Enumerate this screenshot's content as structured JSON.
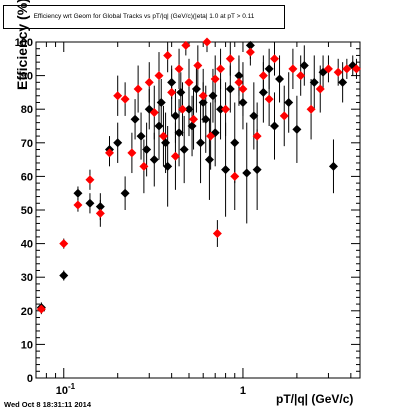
{
  "title": "Efficiency wrt Geom for Global Tracks vs pT/|q| (GeV/c)(|eta| 1.0 at pT > 0.11",
  "timestamp": "Wed Oct  8 18:31:11 2014",
  "chart_data": {
    "type": "scatter",
    "title": "Efficiency wrt Geom for Global Tracks vs pT/|q| (GeV/c)(|eta| 1.0 at pT > 0.11",
    "xlabel": "pT/|q| (GeV/c)",
    "ylabel": "Efficiency (%)",
    "x_scale": "log",
    "xlim": [
      0.07,
      4.5
    ],
    "ylim": [
      0,
      100
    ],
    "x_tick_labels": [
      "10^-1",
      "1"
    ],
    "y_tick_labels": [
      "0",
      "10",
      "20",
      "30",
      "40",
      "50",
      "60",
      "70",
      "80",
      "90",
      "100"
    ],
    "grid": false,
    "series": [
      {
        "color": "#000000",
        "marker": "diamond",
        "points": [
          {
            "x": 0.075,
            "y": 21,
            "err": 1.5
          },
          {
            "x": 0.1,
            "y": 30.5,
            "err": 1.5
          },
          {
            "x": 0.12,
            "y": 55,
            "err": 2
          },
          {
            "x": 0.14,
            "y": 52,
            "err": 3
          },
          {
            "x": 0.16,
            "y": 51,
            "err": 4
          },
          {
            "x": 0.18,
            "y": 68,
            "err": 4
          },
          {
            "x": 0.2,
            "y": 70,
            "err": 6
          },
          {
            "x": 0.22,
            "y": 55,
            "err": 5
          },
          {
            "x": 0.25,
            "y": 77,
            "err": 6
          },
          {
            "x": 0.27,
            "y": 72,
            "err": 7
          },
          {
            "x": 0.29,
            "y": 68,
            "err": 8
          },
          {
            "x": 0.3,
            "y": 80,
            "err": 6
          },
          {
            "x": 0.32,
            "y": 65,
            "err": 8
          },
          {
            "x": 0.34,
            "y": 75,
            "err": 10
          },
          {
            "x": 0.35,
            "y": 82,
            "err": 7
          },
          {
            "x": 0.37,
            "y": 70,
            "err": 9
          },
          {
            "x": 0.38,
            "y": 63,
            "err": 12
          },
          {
            "x": 0.4,
            "y": 88,
            "err": 5
          },
          {
            "x": 0.42,
            "y": 78,
            "err": 8
          },
          {
            "x": 0.44,
            "y": 73,
            "err": 10
          },
          {
            "x": 0.45,
            "y": 85,
            "err": 6
          },
          {
            "x": 0.47,
            "y": 68,
            "err": 10
          },
          {
            "x": 0.5,
            "y": 80,
            "err": 8
          },
          {
            "x": 0.52,
            "y": 75,
            "err": 9
          },
          {
            "x": 0.55,
            "y": 86,
            "err": 7
          },
          {
            "x": 0.58,
            "y": 70,
            "err": 12
          },
          {
            "x": 0.6,
            "y": 82,
            "err": 6
          },
          {
            "x": 0.62,
            "y": 77,
            "err": 10
          },
          {
            "x": 0.65,
            "y": 65,
            "err": 12
          },
          {
            "x": 0.68,
            "y": 84,
            "err": 8
          },
          {
            "x": 0.7,
            "y": 73,
            "err": 10
          },
          {
            "x": 0.75,
            "y": 80,
            "err": 9
          },
          {
            "x": 0.8,
            "y": 62,
            "err": 14
          },
          {
            "x": 0.85,
            "y": 86,
            "err": 7
          },
          {
            "x": 0.9,
            "y": 70,
            "err": 12
          },
          {
            "x": 0.95,
            "y": 90,
            "err": 6
          },
          {
            "x": 1.0,
            "y": 82,
            "err": 8
          },
          {
            "x": 1.05,
            "y": 61,
            "err": 15
          },
          {
            "x": 1.1,
            "y": 99,
            "err": 4
          },
          {
            "x": 1.15,
            "y": 78,
            "err": 10
          },
          {
            "x": 1.2,
            "y": 62,
            "err": 12
          },
          {
            "x": 1.3,
            "y": 85,
            "err": 9
          },
          {
            "x": 1.4,
            "y": 92,
            "err": 6
          },
          {
            "x": 1.5,
            "y": 75,
            "err": 10
          },
          {
            "x": 1.6,
            "y": 89,
            "err": 7
          },
          {
            "x": 1.8,
            "y": 82,
            "err": 9
          },
          {
            "x": 2.0,
            "y": 74,
            "err": 10
          },
          {
            "x": 2.2,
            "y": 93,
            "err": 6
          },
          {
            "x": 2.5,
            "y": 88,
            "err": 8
          },
          {
            "x": 2.8,
            "y": 91,
            "err": 5
          },
          {
            "x": 3.2,
            "y": 63,
            "err": 8
          },
          {
            "x": 3.6,
            "y": 88,
            "err": 6
          },
          {
            "x": 4.1,
            "y": 93,
            "err": 3
          }
        ]
      },
      {
        "color": "#ff0000",
        "marker": "diamond",
        "points": [
          {
            "x": 0.075,
            "y": 20.5,
            "err": 1.5
          },
          {
            "x": 0.1,
            "y": 40,
            "err": 1.5
          },
          {
            "x": 0.12,
            "y": 51.5,
            "err": 2
          },
          {
            "x": 0.14,
            "y": 59,
            "err": 3
          },
          {
            "x": 0.16,
            "y": 49,
            "err": 4
          },
          {
            "x": 0.18,
            "y": 67,
            "err": 4
          },
          {
            "x": 0.2,
            "y": 84,
            "err": 6
          },
          {
            "x": 0.22,
            "y": 83,
            "err": 5
          },
          {
            "x": 0.24,
            "y": 67,
            "err": 6
          },
          {
            "x": 0.26,
            "y": 86,
            "err": 7
          },
          {
            "x": 0.28,
            "y": 63,
            "err": 8
          },
          {
            "x": 0.3,
            "y": 88,
            "err": 6
          },
          {
            "x": 0.32,
            "y": 79,
            "err": 8
          },
          {
            "x": 0.34,
            "y": 90,
            "err": 7
          },
          {
            "x": 0.36,
            "y": 72,
            "err": 9
          },
          {
            "x": 0.38,
            "y": 96,
            "err": 5
          },
          {
            "x": 0.4,
            "y": 85,
            "err": 7
          },
          {
            "x": 0.42,
            "y": 66,
            "err": 10
          },
          {
            "x": 0.44,
            "y": 92,
            "err": 6
          },
          {
            "x": 0.46,
            "y": 80,
            "err": 8
          },
          {
            "x": 0.48,
            "y": 99,
            "err": 3
          },
          {
            "x": 0.5,
            "y": 88,
            "err": 7
          },
          {
            "x": 0.53,
            "y": 77,
            "err": 9
          },
          {
            "x": 0.56,
            "y": 93,
            "err": 6
          },
          {
            "x": 0.6,
            "y": 84,
            "err": 8
          },
          {
            "x": 0.63,
            "y": 100,
            "err": 3
          },
          {
            "x": 0.66,
            "y": 72,
            "err": 10
          },
          {
            "x": 0.7,
            "y": 89,
            "err": 7
          },
          {
            "x": 0.72,
            "y": 43,
            "err": 4
          },
          {
            "x": 0.75,
            "y": 92,
            "err": 6
          },
          {
            "x": 0.8,
            "y": 80,
            "err": 8
          },
          {
            "x": 0.85,
            "y": 95,
            "err": 5
          },
          {
            "x": 0.9,
            "y": 60,
            "err": 10
          },
          {
            "x": 0.95,
            "y": 88,
            "err": 7
          },
          {
            "x": 1.0,
            "y": 86,
            "err": 8
          },
          {
            "x": 1.1,
            "y": 97,
            "err": 4
          },
          {
            "x": 1.2,
            "y": 72,
            "err": 10
          },
          {
            "x": 1.3,
            "y": 90,
            "err": 6
          },
          {
            "x": 1.4,
            "y": 83,
            "err": 8
          },
          {
            "x": 1.5,
            "y": 95,
            "err": 5
          },
          {
            "x": 1.7,
            "y": 78,
            "err": 9
          },
          {
            "x": 1.9,
            "y": 92,
            "err": 6
          },
          {
            "x": 2.1,
            "y": 90,
            "err": 6
          },
          {
            "x": 2.4,
            "y": 80,
            "err": 9
          },
          {
            "x": 2.7,
            "y": 86,
            "err": 7
          },
          {
            "x": 3.0,
            "y": 92,
            "err": 4
          },
          {
            "x": 3.4,
            "y": 91,
            "err": 4
          },
          {
            "x": 3.8,
            "y": 92,
            "err": 3
          },
          {
            "x": 4.3,
            "y": 92,
            "err": 3
          }
        ]
      }
    ]
  }
}
